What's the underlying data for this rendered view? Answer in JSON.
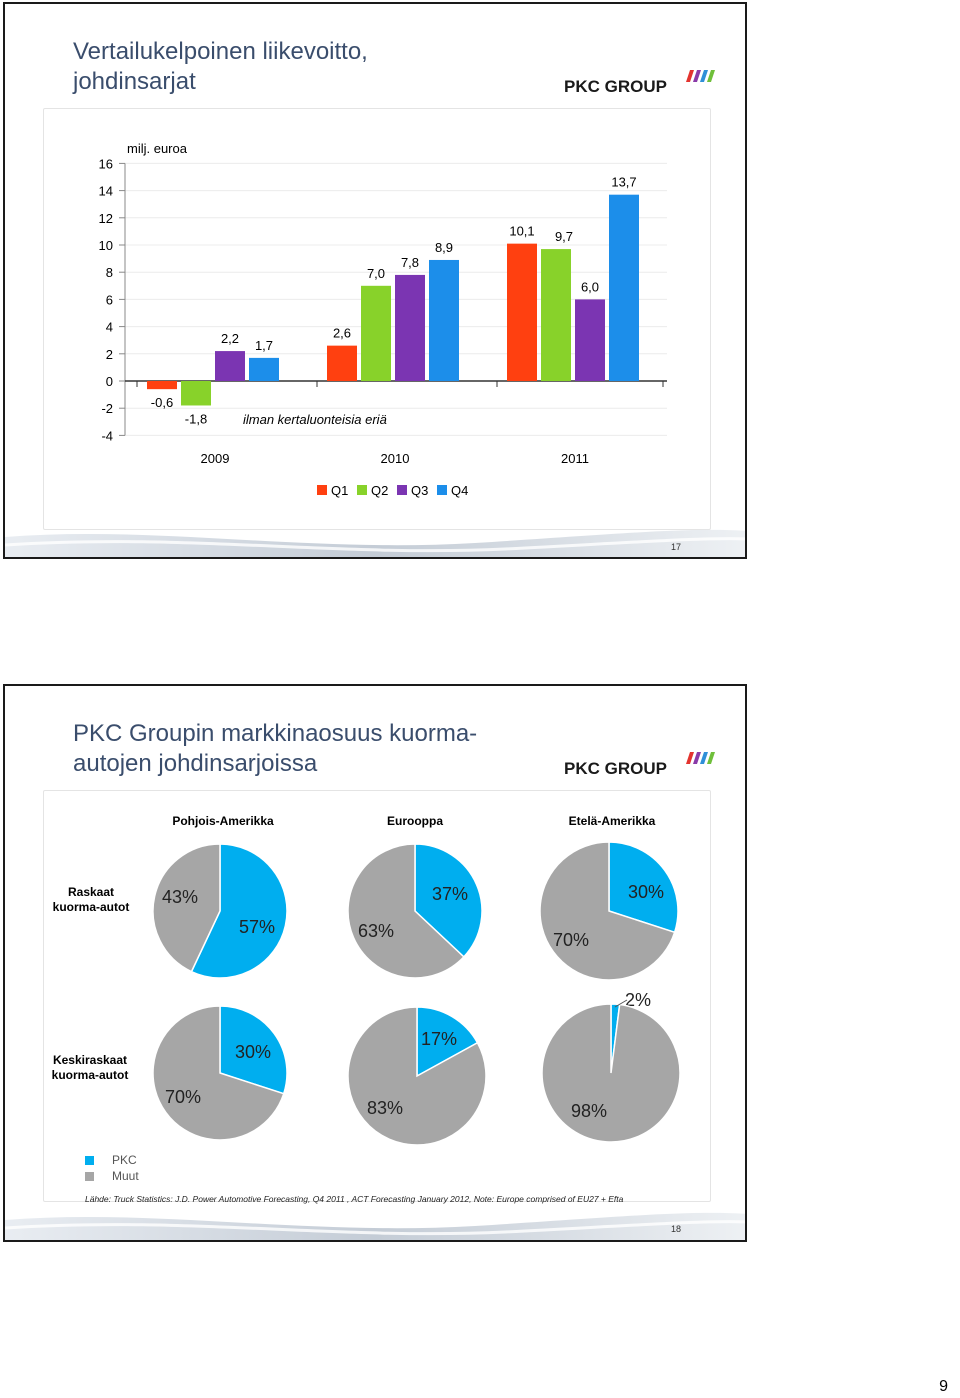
{
  "slide1": {
    "title_line1": "Vertailukelpoinen liikevoitto,",
    "title_line2": "johdinsarjat",
    "logo_text": "PKC GROUP",
    "page_number": "17",
    "chart_data": {
      "type": "bar",
      "unit_label": "milj. euroa",
      "annotation": "ilman kertaluonteisia eriä",
      "ylim": [
        -4,
        16
      ],
      "yticks": [
        "16",
        "14",
        "12",
        "10",
        "8",
        "6",
        "4",
        "2",
        "0",
        "-2",
        "-4"
      ],
      "categories": [
        "2009",
        "2010",
        "2011"
      ],
      "series": [
        {
          "name": "Q1",
          "color": "#FF4010",
          "values": [
            -0.6,
            2.6,
            10.1
          ],
          "labels": [
            "-0,6",
            "2,6",
            "10,1"
          ]
        },
        {
          "name": "Q2",
          "color": "#88D22A",
          "values": [
            -1.8,
            7.0,
            9.7
          ],
          "labels": [
            "-1,8",
            "7,0",
            "9,7"
          ]
        },
        {
          "name": "Q3",
          "color": "#7B35B2",
          "values": [
            2.2,
            7.8,
            6.0
          ],
          "labels": [
            "2,2",
            "7,8",
            "6,0"
          ]
        },
        {
          "name": "Q4",
          "color": "#1C8EEA",
          "values": [
            1.7,
            8.9,
            13.7
          ],
          "labels": [
            "1,7",
            "8,9",
            "13,7"
          ]
        }
      ],
      "grid": true,
      "legend": "bottom"
    }
  },
  "slide2": {
    "title_line1": "PKC Groupin markkinaosuus kuorma-",
    "title_line2": "autojen johdinsarjoissa",
    "logo_text": "PKC GROUP",
    "page_number": "18",
    "regions": [
      "Pohjois-Amerikka",
      "Eurooppa",
      "Etelä-Amerikka"
    ],
    "rows": [
      {
        "label_line1": "Raskaat",
        "label_line2": "kuorma-autot"
      },
      {
        "label_line1": "Keskiraskaat",
        "label_line2": "kuorma-autot"
      }
    ],
    "legend": [
      {
        "label": "PKC",
        "color": "#00AEEF"
      },
      {
        "label": "Muut",
        "color": "#A6A6A6"
      }
    ],
    "source": "Lähde: Truck Statistics: J.D. Power Automotive Forecasting, Q4 2011 , ACT Forecasting  January 2012, Note: Europe comprised of EU27 + Efta",
    "chart_data": [
      {
        "type": "pie",
        "region": "Pohjois-Amerikka",
        "row": "Raskaat kuorma-autot",
        "slices": [
          {
            "name": "PKC",
            "value": 57,
            "label": "57%"
          },
          {
            "name": "Muut",
            "value": 43,
            "label": "43%"
          }
        ]
      },
      {
        "type": "pie",
        "region": "Eurooppa",
        "row": "Raskaat kuorma-autot",
        "slices": [
          {
            "name": "PKC",
            "value": 37,
            "label": "37%"
          },
          {
            "name": "Muut",
            "value": 63,
            "label": "63%"
          }
        ]
      },
      {
        "type": "pie",
        "region": "Etelä-Amerikka",
        "row": "Raskaat kuorma-autot",
        "slices": [
          {
            "name": "PKC",
            "value": 30,
            "label": "30%"
          },
          {
            "name": "Muut",
            "value": 70,
            "label": "70%"
          }
        ]
      },
      {
        "type": "pie",
        "region": "Pohjois-Amerikka",
        "row": "Keskiraskaat kuorma-autot",
        "slices": [
          {
            "name": "PKC",
            "value": 30,
            "label": "30%"
          },
          {
            "name": "Muut",
            "value": 70,
            "label": "70%"
          }
        ]
      },
      {
        "type": "pie",
        "region": "Eurooppa",
        "row": "Keskiraskaat kuorma-autot",
        "slices": [
          {
            "name": "PKC",
            "value": 17,
            "label": "17%"
          },
          {
            "name": "Muut",
            "value": 83,
            "label": "83%"
          }
        ]
      },
      {
        "type": "pie",
        "region": "Etelä-Amerikka",
        "row": "Keskiraskaat kuorma-autot",
        "slices": [
          {
            "name": "PKC",
            "value": 2,
            "label": "2%"
          },
          {
            "name": "Muut",
            "value": 98,
            "label": "98%"
          }
        ]
      }
    ]
  },
  "page_corner_number": "9"
}
